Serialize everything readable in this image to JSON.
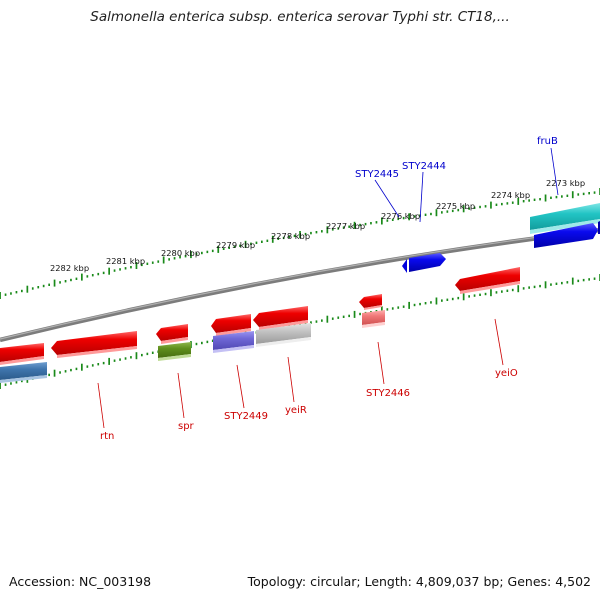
{
  "title": "Salmonella enterica subsp. enterica serovar Typhi str. CT18,...",
  "footer": {
    "accession": "Accession: NC_003198",
    "topology": "Topology: circular; Length: 4,809,037 bp; Genes: 4,502"
  },
  "colors": {
    "backbone": "#858585",
    "tick": "#1a8a1a",
    "label_red": "#cc0000",
    "label_blue": "#0000cc"
  },
  "kbp_labels": [
    "2282 kbp",
    "2281 kbp",
    "2280 kbp",
    "2279 kbp",
    "2278 kbp",
    "2277 kbp",
    "2276 kbp",
    "2275 kbp",
    "2274 kbp",
    "2273 kbp"
  ],
  "gene_labels": {
    "rtn": "rtn",
    "spr": "spr",
    "sty2449": "STY2449",
    "yeir": "yeiR",
    "sty2446": "STY2446",
    "yeio": "yeiO",
    "sty2445": "STY2445",
    "sty2444": "STY2444",
    "frub": "fruB"
  }
}
